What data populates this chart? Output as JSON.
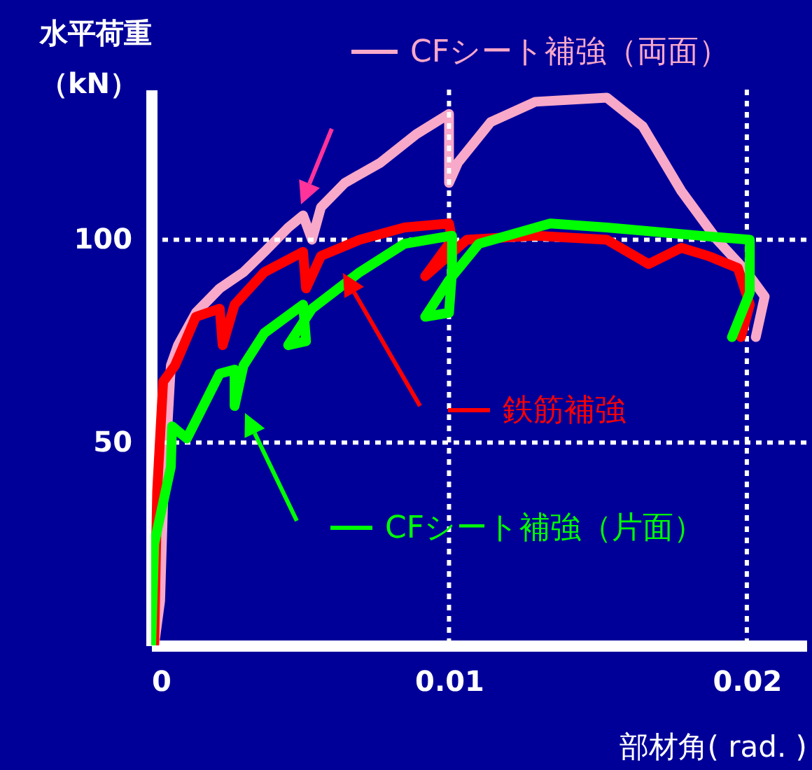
{
  "chart_data": {
    "type": "line",
    "xlabel": "部材角( rad. )",
    "ylabel": "水平荷重（kN）",
    "xlim": [
      0,
      0.022
    ],
    "ylim": [
      0,
      137
    ],
    "xticks": [
      0,
      0.01,
      0.02
    ],
    "yticks": [
      50,
      100
    ],
    "legend": "right",
    "marker": "none",
    "line_style": "solid",
    "grid": false,
    "ref_lines": [
      {
        "axis": "y",
        "value": 100,
        "color": "#ffffff",
        "line_style": "dotted"
      },
      {
        "axis": "y",
        "value": 50,
        "color": "#ffffff",
        "line_style": "dotted"
      },
      {
        "axis": "x",
        "value": 0.01,
        "color": "#ffffff",
        "line_style": "dotted"
      },
      {
        "axis": "x",
        "value": 0.02,
        "color": "#ffffff",
        "line_style": "dotted"
      }
    ],
    "series": [
      {
        "name": "CFシート補強（両面）",
        "color": "#f8a8c8",
        "x": [
          0.0001,
          0.0003,
          0.0004,
          0.00066,
          0.0009,
          0.0015,
          0.0023,
          0.0031,
          0.0038,
          0.0046,
          0.0051,
          0.0054,
          0.0057,
          0.0065,
          0.0077,
          0.0089,
          0.01,
          0.01,
          0.0103,
          0.0114,
          0.0129,
          0.0153,
          0.0165,
          0.0178,
          0.019,
          0.02,
          0.0206,
          0.0203
        ],
        "values": [
          0,
          11,
          35,
          69,
          74,
          82,
          88,
          92,
          97,
          103,
          106,
          100,
          108,
          114,
          119,
          126,
          131,
          114,
          119,
          129,
          134,
          135,
          128,
          112,
          100,
          92,
          86,
          76
        ]
      },
      {
        "name": "鉄筋補強",
        "color": "#ff0000",
        "x": [
          0.0001,
          0.0002,
          0.0004,
          0.0008,
          0.0015,
          0.0023,
          0.0024,
          0.0028,
          0.0038,
          0.0051,
          0.0052,
          0.0057,
          0.007,
          0.0085,
          0.01,
          0.0101,
          0.0092,
          0.0106,
          0.0129,
          0.0153,
          0.0167,
          0.0178,
          0.0187,
          0.0197,
          0.0201,
          0.0198
        ],
        "values": [
          0,
          38,
          65,
          69,
          81,
          83,
          74,
          84,
          92,
          97,
          88,
          96,
          100,
          103,
          104,
          100,
          91,
          100,
          101,
          100,
          94,
          98,
          96,
          93,
          84,
          76
        ]
      },
      {
        "name": "CFシート補強（片面）",
        "color": "#00ff00",
        "x": [
          0,
          0.0001,
          0.00066,
          0.0007,
          0.0012,
          0.0023,
          0.0028,
          0.0028,
          0.0031,
          0.0038,
          0.0051,
          0.0052,
          0.0046,
          0.0054,
          0.007,
          0.0085,
          0.0101,
          0.0101,
          0.01,
          0.0092,
          0.01,
          0.011,
          0.0134,
          0.0153,
          0.0184,
          0.0201,
          0.0201,
          0.0195
        ],
        "values": [
          0,
          25,
          44,
          54,
          51,
          67,
          68,
          59,
          69,
          77,
          84,
          75,
          74,
          83,
          92,
          99,
          101,
          92,
          82,
          81,
          90,
          99,
          104,
          103,
          101,
          100,
          87,
          76
        ]
      }
    ]
  }
}
